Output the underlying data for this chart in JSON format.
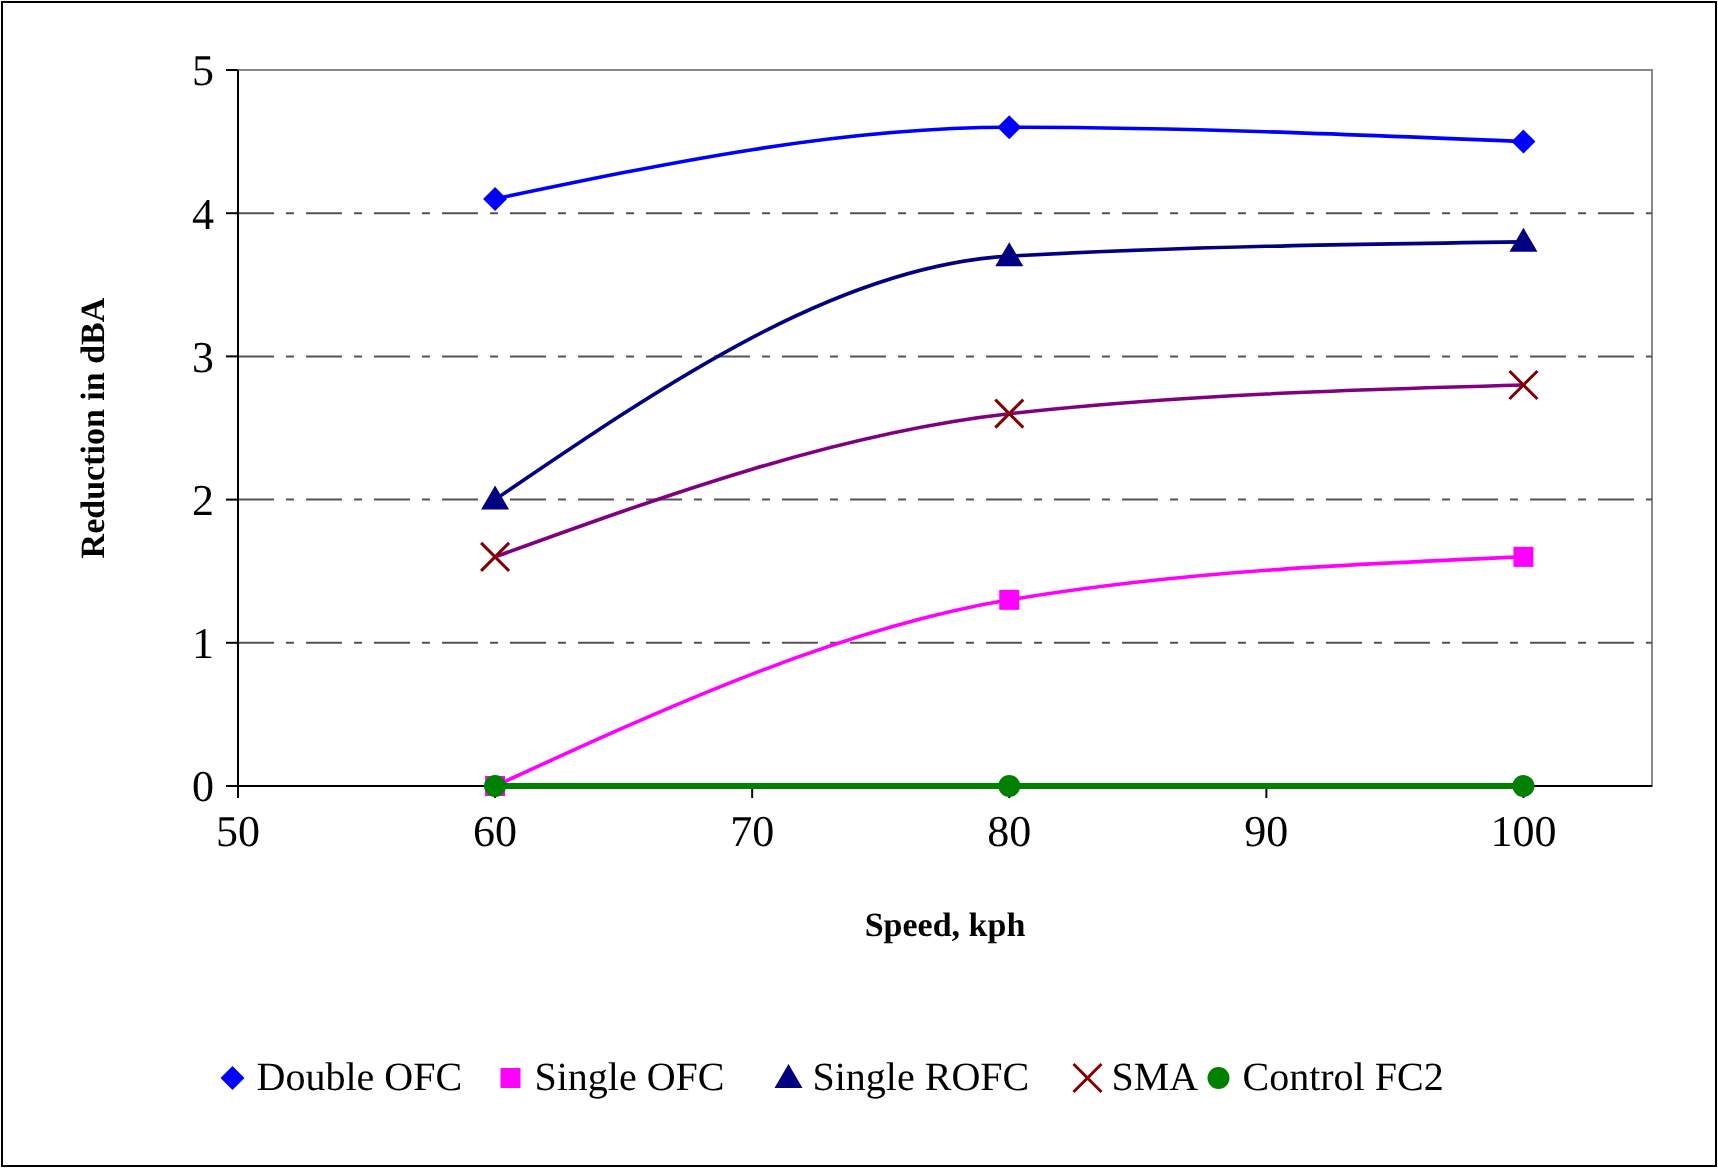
{
  "chart_data": {
    "type": "line",
    "xlabel": "Speed, kph",
    "ylabel": "Reduction in dBA",
    "x": [
      60,
      80,
      100
    ],
    "series": [
      {
        "name": "Double OFC",
        "color": "#0000ff",
        "marker": "diamond",
        "values": [
          4.1,
          4.6,
          4.5
        ]
      },
      {
        "name": "Single OFC",
        "color": "#ff00ff",
        "marker": "square",
        "values": [
          0,
          1.3,
          1.6
        ]
      },
      {
        "name": "Single ROFC",
        "color": "#000080",
        "marker": "triangle",
        "values": [
          2.0,
          3.7,
          3.8
        ]
      },
      {
        "name": "SMA",
        "color": "#800080",
        "marker": "cross",
        "values": [
          1.6,
          2.6,
          2.8
        ]
      },
      {
        "name": "Control FC2",
        "color": "#008000",
        "marker": "circle",
        "values": [
          0,
          0,
          0
        ]
      }
    ],
    "xlim": [
      50,
      105
    ],
    "xticks": [
      50,
      60,
      70,
      80,
      90,
      100
    ],
    "ylim": [
      0,
      5
    ],
    "yticks": [
      0,
      1,
      2,
      3,
      4,
      5
    ],
    "grid": "y",
    "legend": "bottom"
  }
}
